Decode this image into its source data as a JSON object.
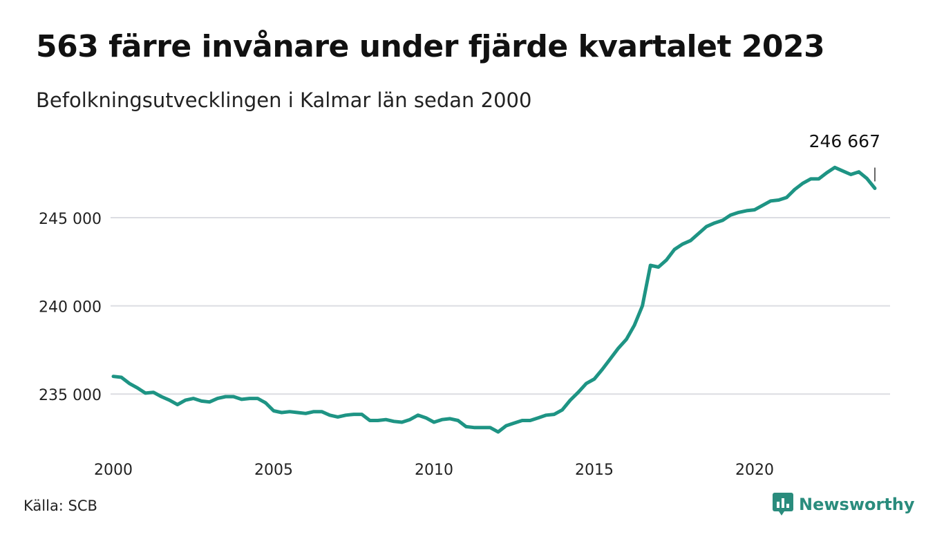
{
  "title": "563 färre invånare under fjärde kvartalet 2023",
  "subtitle": "Befolkningsutvecklingen i Kalmar län sedan 2000",
  "source": "Källa: SCB",
  "brand": "Newsworthy",
  "colors": {
    "line": "#1e9484",
    "grid": "#dcdde2",
    "brand": "#2a8c7d"
  },
  "chart_data": {
    "type": "line",
    "title": "563 färre invånare under fjärde kvartalet 2023",
    "subtitle": "Befolkningsutvecklingen i Kalmar län sedan 2000",
    "xlabel": "",
    "ylabel": "",
    "grid": true,
    "xlim": [
      2000,
      2023.75
    ],
    "ylim": [
      232500,
      249000
    ],
    "x_ticks": [
      {
        "value": 2000,
        "label": "2000"
      },
      {
        "value": 2005,
        "label": "2005"
      },
      {
        "value": 2010,
        "label": "2010"
      },
      {
        "value": 2015,
        "label": "2015"
      },
      {
        "value": 2020,
        "label": "2020"
      }
    ],
    "y_ticks": [
      {
        "value": 235000,
        "label": "235 000"
      },
      {
        "value": 240000,
        "label": "240 000"
      },
      {
        "value": 245000,
        "label": "245 000"
      }
    ],
    "last_label": "246 667",
    "series": [
      {
        "x_start": 2000,
        "x_step": 0.25,
        "values": [
          236000,
          235950,
          235600,
          235350,
          235050,
          235100,
          234850,
          234650,
          234400,
          234650,
          234750,
          234600,
          234550,
          234750,
          234850,
          234850,
          234700,
          234750,
          234750,
          234500,
          234050,
          233950,
          234000,
          233950,
          233900,
          234000,
          234000,
          233800,
          233700,
          233800,
          233850,
          233850,
          233500,
          233500,
          233550,
          233450,
          233400,
          233550,
          233800,
          233650,
          233400,
          233550,
          233600,
          233500,
          233150,
          233100,
          233100,
          233100,
          232850,
          233200,
          233350,
          233500,
          233500,
          233650,
          233800,
          233850,
          234100,
          234650,
          235100,
          235600,
          235850,
          236400,
          237000,
          237600,
          238100,
          238900,
          240000,
          242300,
          242200,
          242600,
          243200,
          243500,
          243700,
          244100,
          244500,
          244700,
          244850,
          245150,
          245300,
          245400,
          245450,
          245700,
          245950,
          246000,
          246150,
          246600,
          246950,
          247200,
          247200,
          247550,
          247850,
          247650,
          247450,
          247600,
          247230,
          246667
        ]
      }
    ]
  }
}
